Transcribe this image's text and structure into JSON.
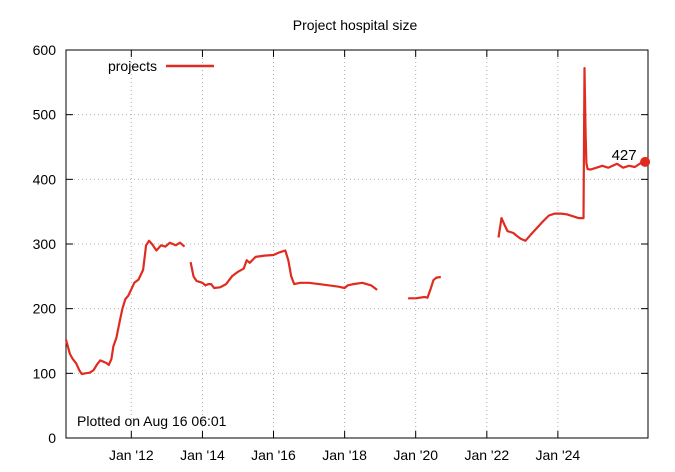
{
  "chart_data": {
    "type": "line",
    "title": "Project hospital size",
    "xlabel": "",
    "ylabel": "",
    "ylim": [
      0,
      600
    ],
    "xlim": [
      "2010-03-01",
      "2026-07-15"
    ],
    "yticks": [
      0,
      100,
      200,
      300,
      400,
      500,
      600
    ],
    "xticks": [
      {
        "date": "2012-01-01",
        "label": "Jan '12"
      },
      {
        "date": "2014-01-01",
        "label": "Jan '14"
      },
      {
        "date": "2016-01-01",
        "label": "Jan '16"
      },
      {
        "date": "2018-01-01",
        "label": "Jan '18"
      },
      {
        "date": "2020-01-01",
        "label": "Jan '20"
      },
      {
        "date": "2022-01-01",
        "label": "Jan '22"
      },
      {
        "date": "2024-01-01",
        "label": "Jan '24"
      }
    ],
    "grid": true,
    "legend_position": "top-left",
    "series": [
      {
        "name": "projects",
        "color": "#e02b20",
        "segments": [
          [
            [
              "2010-03-01",
              152
            ],
            [
              "2010-04-10",
              130
            ],
            [
              "2010-05-10",
              122
            ],
            [
              "2010-06-15",
              115
            ],
            [
              "2010-07-15",
              105
            ],
            [
              "2010-08-10",
              99
            ],
            [
              "2010-09-15",
              100
            ],
            [
              "2010-11-01",
              101
            ],
            [
              "2010-12-10",
              105
            ],
            [
              "2011-01-15",
              114
            ],
            [
              "2011-02-15",
              120
            ],
            [
              "2011-03-20",
              118
            ],
            [
              "2011-04-20",
              116
            ],
            [
              "2011-05-15",
              113
            ],
            [
              "2011-06-10",
              122
            ],
            [
              "2011-07-01",
              142
            ],
            [
              "2011-08-01",
              155
            ],
            [
              "2011-09-01",
              178
            ],
            [
              "2011-10-01",
              200
            ],
            [
              "2011-11-01",
              215
            ],
            [
              "2011-12-01",
              220
            ],
            [
              "2012-01-01",
              230
            ],
            [
              "2012-02-01",
              240
            ],
            [
              "2012-03-15",
              245
            ],
            [
              "2012-05-01",
              260
            ],
            [
              "2012-06-01",
              298
            ],
            [
              "2012-07-01",
              305
            ],
            [
              "2012-08-01",
              300
            ],
            [
              "2012-09-15",
              290
            ],
            [
              "2012-11-01",
              298
            ],
            [
              "2012-12-15",
              296
            ],
            [
              "2013-02-01",
              302
            ],
            [
              "2013-04-01",
              298
            ],
            [
              "2013-05-15",
              302
            ],
            [
              "2013-07-01",
              296
            ]
          ],
          [
            [
              "2013-09-01",
              272
            ],
            [
              "2013-10-01",
              250
            ],
            [
              "2013-11-01",
              243
            ],
            [
              "2014-01-01",
              240
            ],
            [
              "2014-02-01",
              236
            ],
            [
              "2014-03-01",
              238
            ],
            [
              "2014-04-01",
              238
            ],
            [
              "2014-05-01",
              232
            ],
            [
              "2014-07-01",
              233
            ],
            [
              "2014-09-01",
              238
            ],
            [
              "2014-11-01",
              250
            ],
            [
              "2015-01-01",
              257
            ],
            [
              "2015-03-01",
              262
            ],
            [
              "2015-04-01",
              275
            ],
            [
              "2015-05-01",
              271
            ],
            [
              "2015-07-01",
              280
            ],
            [
              "2015-10-01",
              282
            ],
            [
              "2016-01-01",
              283
            ],
            [
              "2016-03-01",
              287
            ],
            [
              "2016-05-01",
              290
            ],
            [
              "2016-06-01",
              275
            ],
            [
              "2016-07-01",
              250
            ],
            [
              "2016-08-01",
              238
            ],
            [
              "2016-10-01",
              240
            ],
            [
              "2017-01-01",
              240
            ],
            [
              "2017-06-01",
              237
            ],
            [
              "2017-11-01",
              234
            ],
            [
              "2018-01-01",
              232
            ],
            [
              "2018-02-01",
              236
            ],
            [
              "2018-04-01",
              238
            ],
            [
              "2018-07-01",
              240
            ],
            [
              "2018-10-01",
              236
            ],
            [
              "2018-12-01",
              229
            ]
          ],
          [
            [
              "2019-10-15",
              216
            ],
            [
              "2020-01-01",
              216
            ],
            [
              "2020-04-01",
              218
            ],
            [
              "2020-05-01",
              217
            ],
            [
              "2020-06-01",
              230
            ],
            [
              "2020-07-01",
              244
            ],
            [
              "2020-08-01",
              248
            ],
            [
              "2020-09-15",
              249
            ]
          ],
          [
            [
              "2022-05-01",
              310
            ],
            [
              "2022-06-01",
              340
            ],
            [
              "2022-07-01",
              330
            ],
            [
              "2022-08-01",
              320
            ],
            [
              "2022-10-01",
              317
            ],
            [
              "2022-11-01",
              313
            ],
            [
              "2022-12-15",
              308
            ],
            [
              "2023-02-01",
              305
            ],
            [
              "2023-04-01",
              315
            ],
            [
              "2023-06-01",
              325
            ],
            [
              "2023-08-01",
              335
            ],
            [
              "2023-10-01",
              344
            ],
            [
              "2023-12-01",
              347
            ],
            [
              "2024-02-01",
              347
            ],
            [
              "2024-04-01",
              346
            ],
            [
              "2024-06-01",
              343
            ],
            [
              "2024-08-01",
              340
            ],
            [
              "2024-09-20",
              340
            ],
            [
              "2024-10-01",
              572
            ],
            [
              "2024-10-12",
              470
            ],
            [
              "2024-10-20",
              425
            ],
            [
              "2024-11-01",
              416
            ],
            [
              "2024-12-01",
              415
            ],
            [
              "2025-02-01",
              418
            ],
            [
              "2025-04-01",
              421
            ],
            [
              "2025-06-01",
              418
            ],
            [
              "2025-09-01",
              424
            ],
            [
              "2025-11-01",
              418
            ],
            [
              "2026-01-01",
              421
            ],
            [
              "2026-03-01",
              419
            ],
            [
              "2026-05-01",
              425
            ],
            [
              "2026-06-15",
              427
            ]
          ]
        ],
        "last_value": 427,
        "last_label": "427"
      }
    ],
    "annotations": [
      "Plotted on Aug 16 06:01"
    ]
  }
}
